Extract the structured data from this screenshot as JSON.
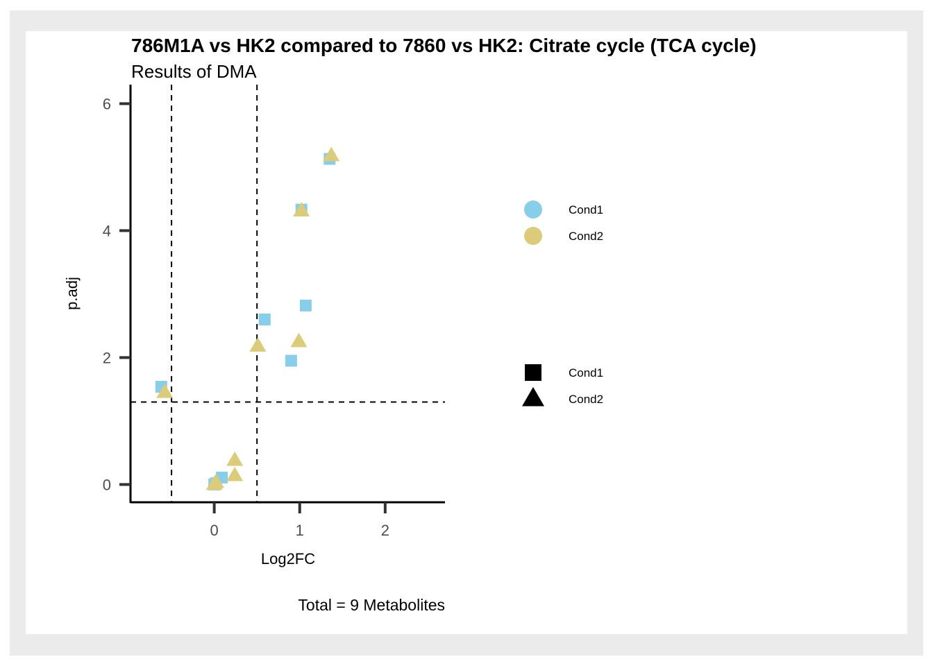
{
  "chart_data": {
    "type": "scatter",
    "title": "786M1A vs HK2 compared to 7860 vs HK2: Citrate cycle (TCA cycle)",
    "subtitle": "Results of DMA",
    "xlabel": "Log2FC",
    "ylabel": "p.adj",
    "caption": "Total = 9 Metabolites",
    "xlim": [
      -0.98,
      2.7
    ],
    "ylim": [
      -0.28,
      6.3
    ],
    "x_ticks": [
      0,
      1,
      2
    ],
    "y_ticks": [
      0,
      2,
      4,
      6
    ],
    "grid": false,
    "thresholds": {
      "x_vlines": [
        -0.5,
        0.5
      ],
      "y_hline": 1.3
    },
    "colors": {
      "Cond1": "#87ceeb",
      "Cond2": "#dccb79"
    },
    "series": [
      {
        "name": "Cond1",
        "shape": "square",
        "points": [
          {
            "x": 1.35,
            "y": 5.13
          },
          {
            "x": 1.02,
            "y": 4.33
          },
          {
            "x": 1.07,
            "y": 2.82
          },
          {
            "x": 0.59,
            "y": 2.6
          },
          {
            "x": 0.9,
            "y": 1.95
          },
          {
            "x": -0.62,
            "y": 1.54
          },
          {
            "x": 0.09,
            "y": 0.11
          },
          {
            "x": 0.0,
            "y": 0.0
          },
          {
            "x": 0.02,
            "y": 0.02
          }
        ]
      },
      {
        "name": "Cond2",
        "shape": "triangle",
        "points": [
          {
            "x": 1.37,
            "y": 5.18
          },
          {
            "x": 1.02,
            "y": 4.31
          },
          {
            "x": 0.99,
            "y": 2.25
          },
          {
            "x": 0.51,
            "y": 2.18
          },
          {
            "x": -0.58,
            "y": 1.45
          },
          {
            "x": 0.24,
            "y": 0.38
          },
          {
            "x": 0.24,
            "y": 0.14
          },
          {
            "x": 0.02,
            "y": 0.03
          },
          {
            "x": 0.0,
            "y": 0.0
          }
        ]
      }
    ],
    "legend": {
      "placement": "right",
      "color": {
        "title": "",
        "entries": [
          "Cond1",
          "Cond2"
        ]
      },
      "shape": {
        "title": "",
        "entries": [
          "Cond1",
          "Cond2"
        ]
      }
    }
  }
}
